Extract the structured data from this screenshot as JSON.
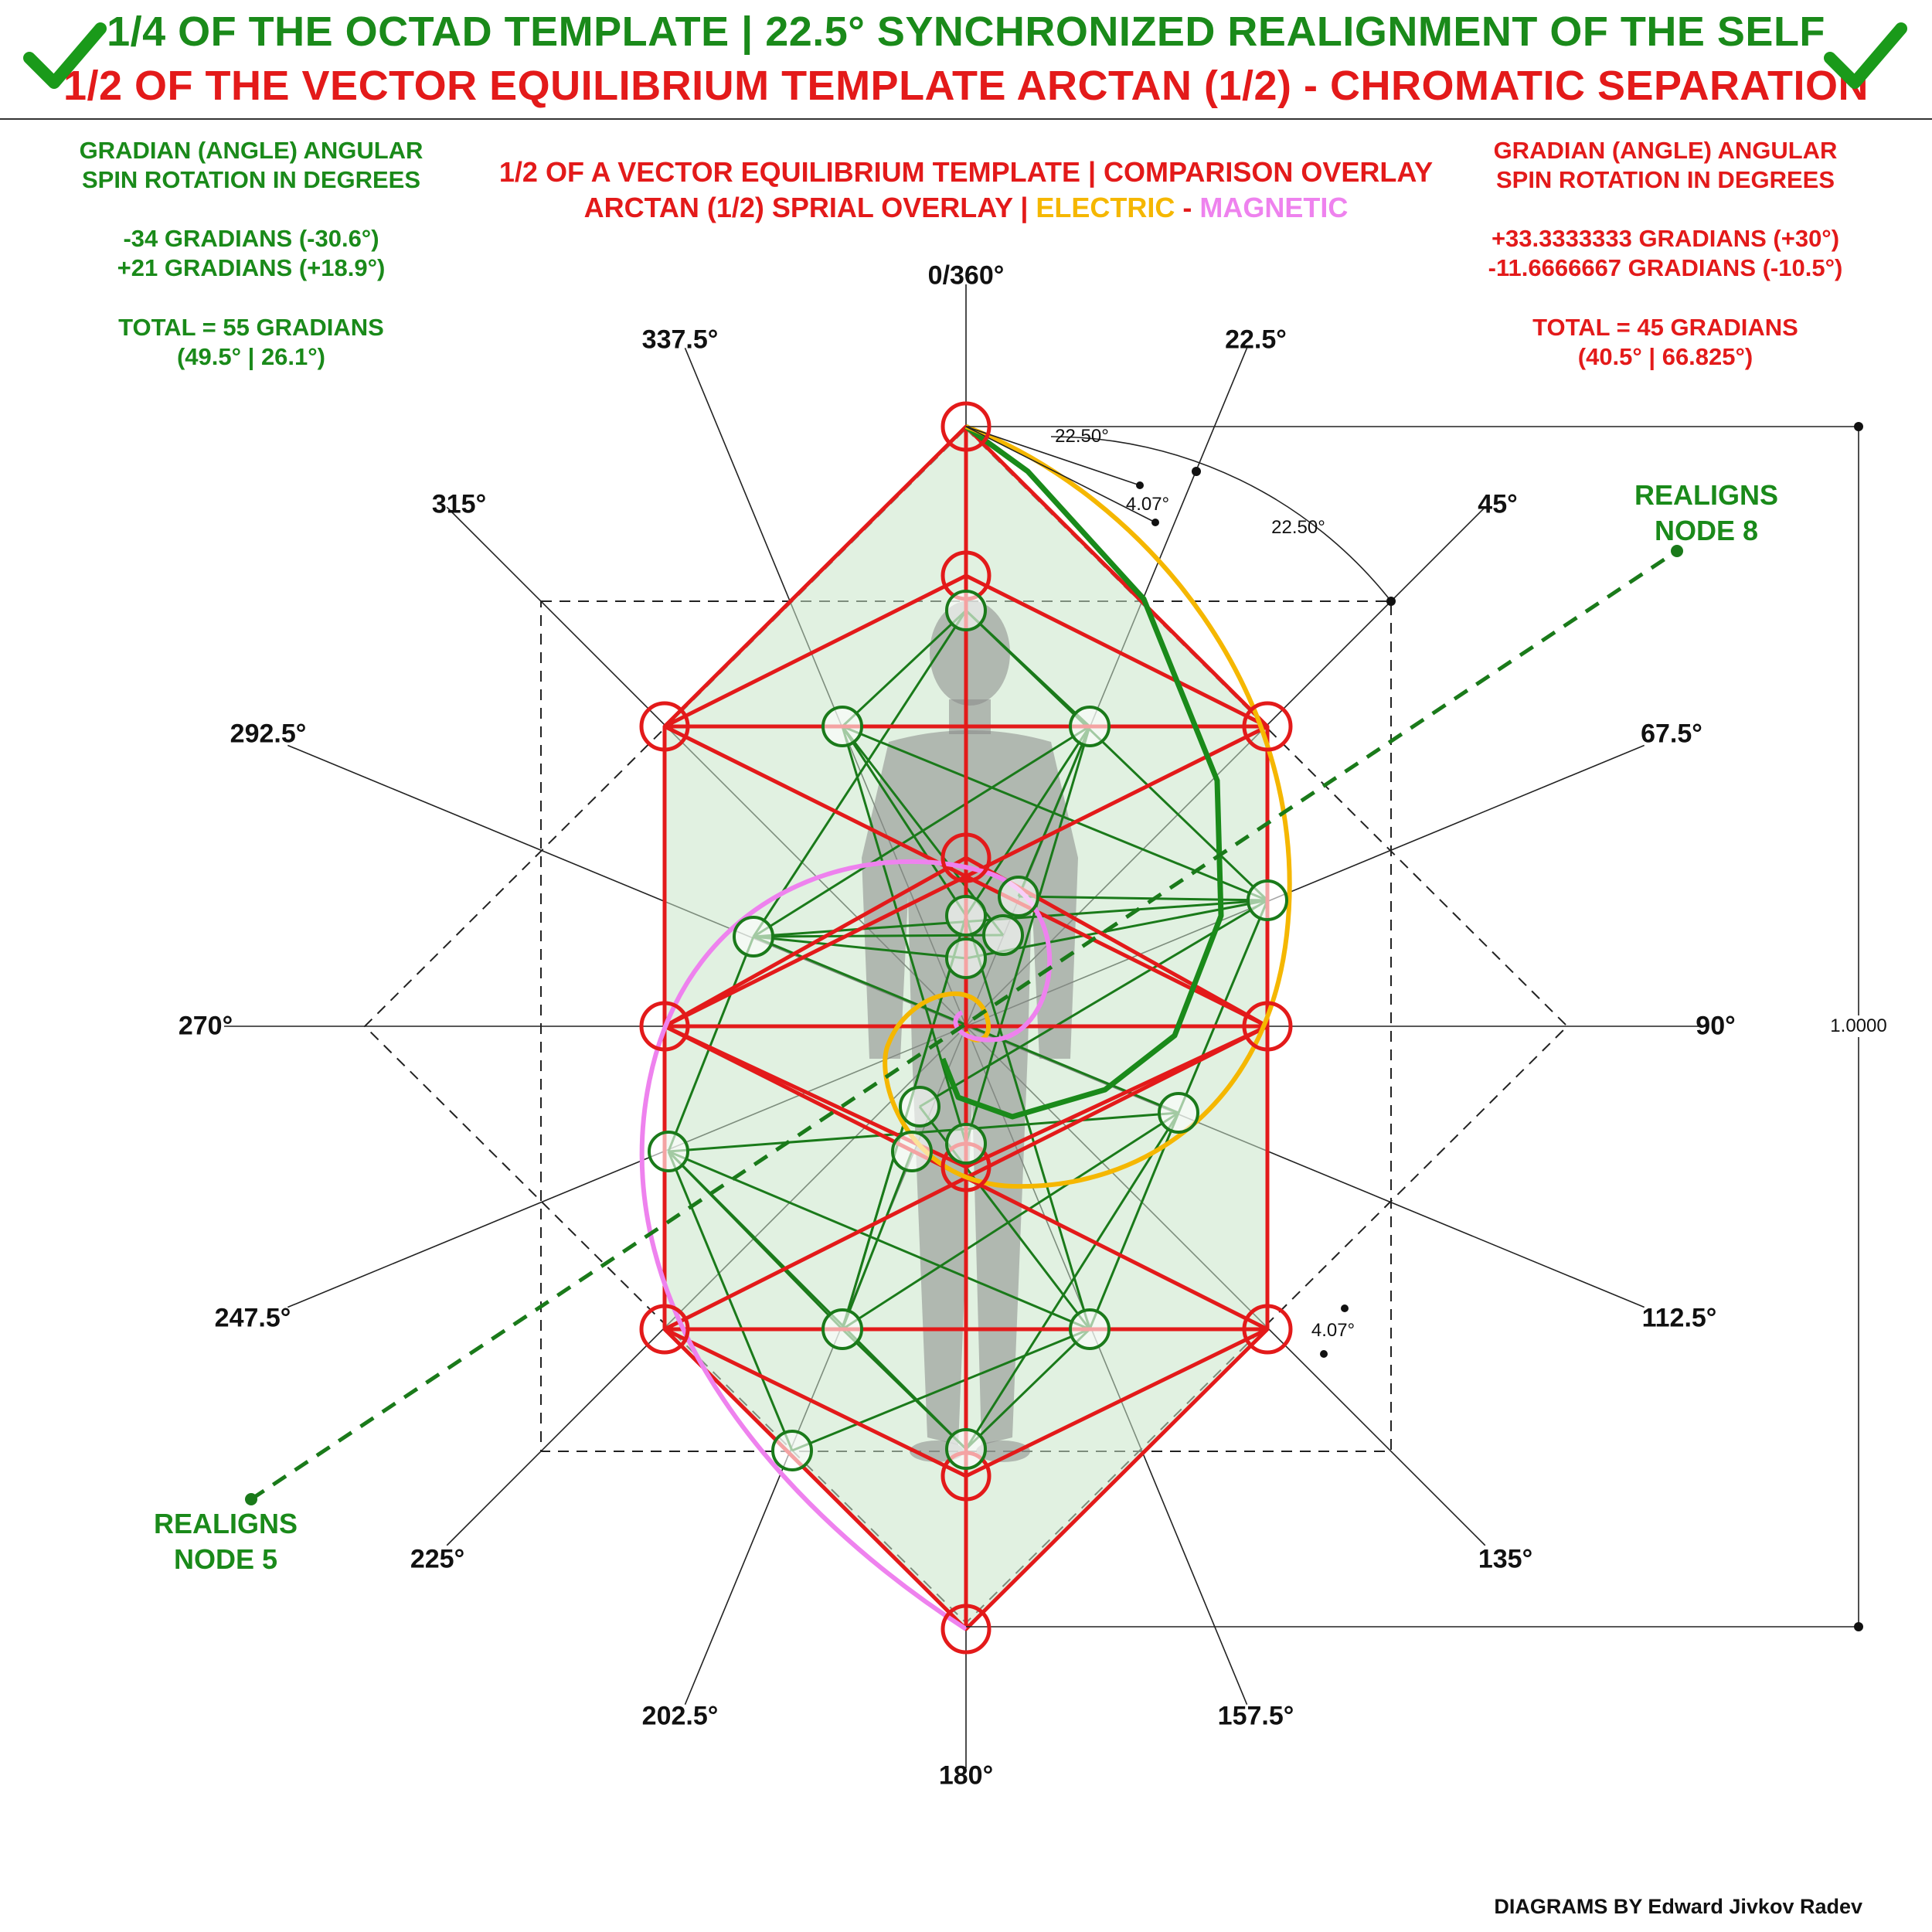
{
  "header": {
    "line1": "1/4 OF THE OCTAD TEMPLATE | 22.5° SYNCHRONIZED REALIGNMENT OF THE SELF",
    "line2": "1/2 OF THE VECTOR EQUILIBRIUM TEMPLATE ARCTAN (1/2) - CHROMATIC SEPARATION"
  },
  "left_panel": {
    "heading": "GRADIAN (ANGLE) ANGULAR\nSPIN ROTATION IN DEGREES",
    "values": "-34 GRADIANS (-30.6°)\n+21 GRADIANS (+18.9°)",
    "total": "TOTAL = 55 GRADIANS\n(49.5° | 26.1°)"
  },
  "right_panel": {
    "heading": "GRADIAN (ANGLE) ANGULAR\nSPIN ROTATION IN DEGREES",
    "values": "+33.3333333 GRADIANS (+30°)\n-11.6666667 GRADIANS (-10.5°)",
    "total": "TOTAL = 45 GRADIANS\n(40.5° | 66.825°)"
  },
  "center_subtitle": {
    "line1": "1/2 OF A VECTOR EQUILIBRIUM TEMPLATE | COMPARISON OVERLAY",
    "line2_prefix": "ARCTAN (1/2) SPRIAL OVERLAY | ",
    "electric": "ELECTRIC",
    "dash": " - ",
    "magnetic": "MAGNETIC"
  },
  "angle_labels": [
    "0/360°",
    "22.5°",
    "45°",
    "67.5°",
    "90°",
    "112.5°",
    "135°",
    "157.5°",
    "180°",
    "202.5°",
    "225°",
    "247.5°",
    "270°",
    "292.5°",
    "315°",
    "337.5°"
  ],
  "measurements": {
    "angle_a": "22.50°",
    "angle_b": "22.50°",
    "angle_c": "4.07°",
    "angle_d": "4.07°",
    "scale": "1.0000"
  },
  "notes": {
    "node8": "REALIGNS\nNODE 8",
    "node5": "REALIGNS\nNODE 5"
  },
  "credit": "DIAGRAMS BY Edward Jivkov Radev",
  "colors": {
    "green": "#1a8a1a",
    "red": "#e31a1a",
    "electric": "#f5b700",
    "magnetic": "#ee82ee",
    "fill": "#c8e6c8"
  }
}
